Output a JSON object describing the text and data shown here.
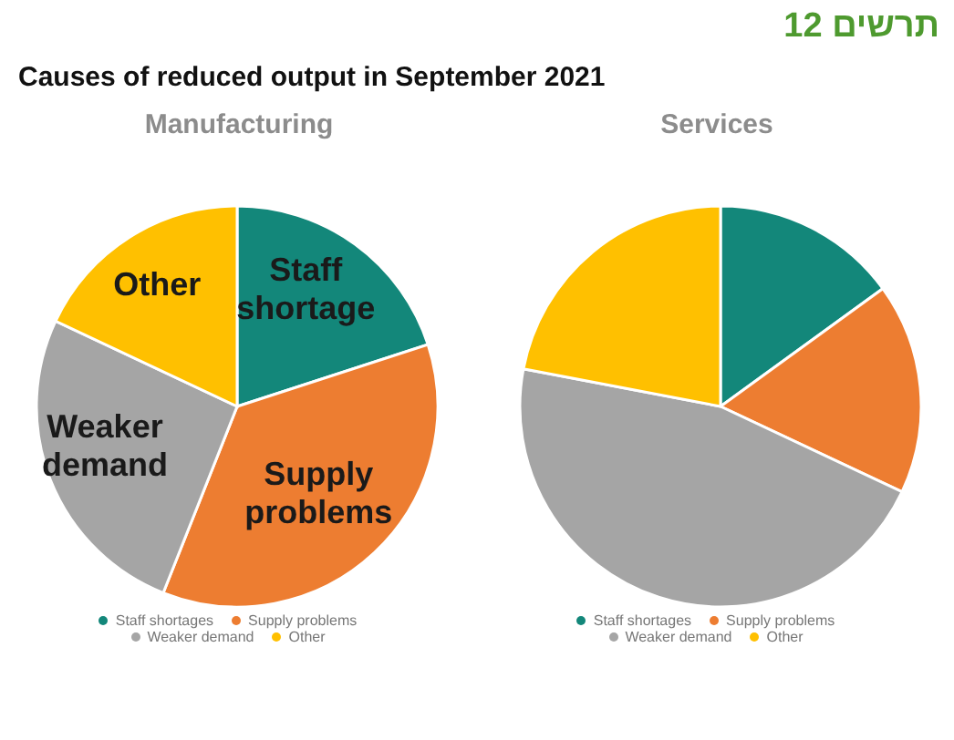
{
  "chart_data": [
    {
      "type": "pie",
      "title": "Manufacturing",
      "categories": [
        "Staff shortages",
        "Supply problems",
        "Weaker demand",
        "Other"
      ],
      "values": [
        20,
        36,
        26,
        18
      ],
      "colors": [
        "#13877a",
        "#ed7d31",
        "#a5a5a5",
        "#ffc000"
      ],
      "legend": "bottom",
      "annotations": [
        "תרשים 12",
        "Causes of reduced output in September 2021",
        {
          "text": "Staff shortage",
          "x": "Staff shortages"
        },
        {
          "text": "Supply problems",
          "x": "Supply problems"
        },
        {
          "text": "Weaker demand",
          "x": "Weaker demand"
        },
        {
          "text": "Other",
          "x": "Other"
        }
      ]
    },
    {
      "type": "pie",
      "title": "Services",
      "categories": [
        "Staff shortages",
        "Supply problems",
        "Weaker demand",
        "Other"
      ],
      "values": [
        15,
        17,
        46,
        22
      ],
      "colors": [
        "#13877a",
        "#ed7d31",
        "#a5a5a5",
        "#ffc000"
      ],
      "legend": "bottom"
    }
  ]
}
